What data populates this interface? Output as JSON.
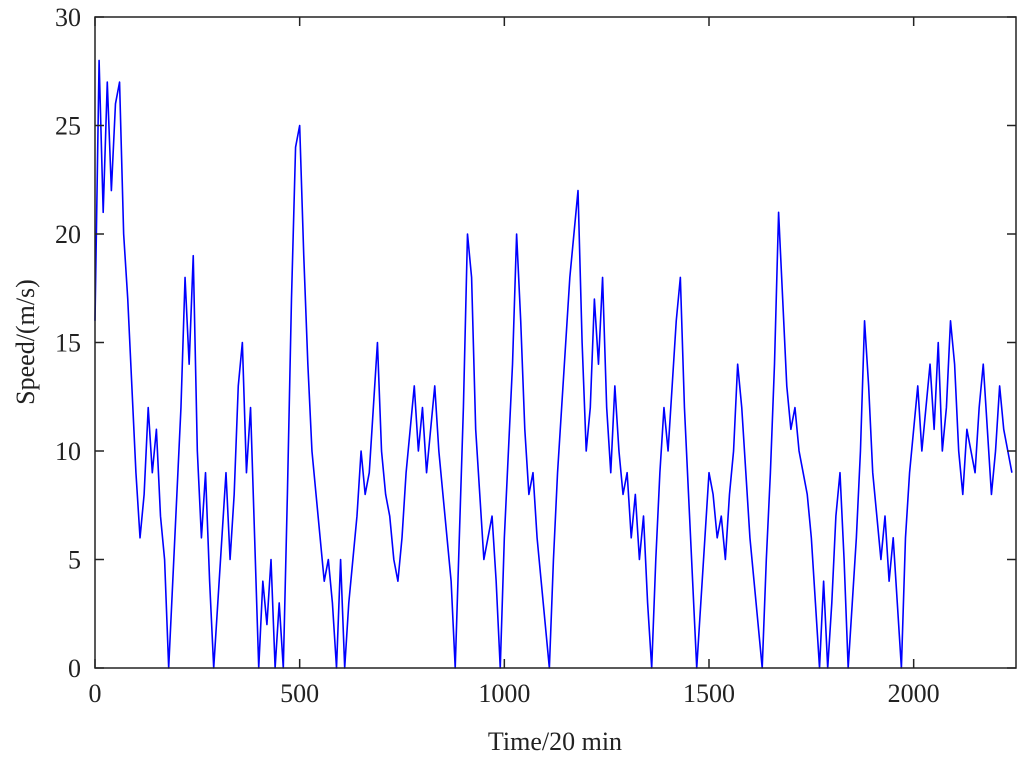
{
  "chart_data": {
    "type": "line",
    "x_label": "Time/20 min",
    "y_label": "Speed/(m/s)",
    "x": [
      0,
      10,
      20,
      30,
      40,
      50,
      60,
      70,
      80,
      90,
      100,
      110,
      120,
      130,
      140,
      150,
      160,
      170,
      180,
      190,
      200,
      210,
      220,
      230,
      240,
      250,
      260,
      270,
      280,
      290,
      300,
      310,
      320,
      330,
      340,
      350,
      360,
      370,
      380,
      390,
      400,
      410,
      420,
      430,
      440,
      450,
      460,
      470,
      480,
      490,
      500,
      510,
      520,
      530,
      540,
      550,
      560,
      570,
      580,
      590,
      600,
      610,
      620,
      630,
      640,
      650,
      660,
      670,
      680,
      690,
      700,
      710,
      720,
      730,
      740,
      750,
      760,
      770,
      780,
      790,
      800,
      810,
      820,
      830,
      840,
      850,
      860,
      870,
      880,
      890,
      900,
      910,
      920,
      930,
      940,
      950,
      960,
      970,
      980,
      990,
      1000,
      1010,
      1020,
      1030,
      1040,
      1050,
      1060,
      1070,
      1080,
      1090,
      1100,
      1110,
      1120,
      1130,
      1140,
      1150,
      1160,
      1170,
      1180,
      1190,
      1200,
      1210,
      1220,
      1230,
      1240,
      1250,
      1260,
      1270,
      1280,
      1290,
      1300,
      1310,
      1320,
      1330,
      1340,
      1350,
      1360,
      1370,
      1380,
      1390,
      1400,
      1410,
      1420,
      1430,
      1440,
      1450,
      1460,
      1470,
      1480,
      1490,
      1500,
      1510,
      1520,
      1530,
      1540,
      1550,
      1560,
      1570,
      1580,
      1590,
      1600,
      1610,
      1620,
      1630,
      1640,
      1650,
      1660,
      1670,
      1680,
      1690,
      1700,
      1710,
      1720,
      1730,
      1740,
      1750,
      1760,
      1770,
      1780,
      1790,
      1800,
      1810,
      1820,
      1830,
      1840,
      1850,
      1860,
      1870,
      1880,
      1890,
      1900,
      1910,
      1920,
      1930,
      1940,
      1950,
      1960,
      1970,
      1980,
      1990,
      2000,
      2010,
      2020,
      2030,
      2040,
      2050,
      2060,
      2070,
      2080,
      2090,
      2100,
      2110,
      2120,
      2130,
      2140,
      2150,
      2160,
      2170,
      2180,
      2190,
      2200,
      2210,
      2220,
      2230,
      2240
    ],
    "series": [
      {
        "color": "#0000ff",
        "values": [
          16,
          28,
          21,
          27,
          22,
          26,
          27,
          20,
          17,
          13,
          9,
          6,
          8,
          12,
          9,
          11,
          7,
          5,
          0,
          4,
          8,
          12,
          18,
          14,
          19,
          10,
          6,
          9,
          4,
          0,
          3,
          6,
          9,
          5,
          8,
          13,
          15,
          9,
          12,
          6,
          0,
          4,
          2,
          5,
          0,
          3,
          0,
          8,
          17,
          24,
          25,
          19,
          14,
          10,
          8,
          6,
          4,
          5,
          3,
          0,
          5,
          0,
          3,
          5,
          7,
          10,
          8,
          9,
          12,
          15,
          10,
          8,
          7,
          5,
          4,
          6,
          9,
          11,
          13,
          10,
          12,
          9,
          11,
          13,
          10,
          8,
          6,
          4,
          0,
          6,
          12,
          20,
          18,
          11,
          8,
          5,
          6,
          7,
          4,
          0,
          6,
          10,
          14,
          20,
          16,
          11,
          8,
          9,
          6,
          4,
          2,
          0,
          5,
          9,
          12,
          15,
          18,
          20,
          22,
          15,
          10,
          12,
          17,
          14,
          18,
          12,
          9,
          13,
          10,
          8,
          9,
          6,
          8,
          5,
          7,
          3,
          0,
          5,
          9,
          12,
          10,
          13,
          16,
          18,
          12,
          8,
          4,
          0,
          3,
          6,
          9,
          8,
          6,
          7,
          5,
          8,
          10,
          14,
          12,
          9,
          6,
          4,
          2,
          0,
          5,
          9,
          14,
          21,
          17,
          13,
          11,
          12,
          10,
          9,
          8,
          6,
          3,
          0,
          4,
          0,
          3,
          7,
          9,
          5,
          0,
          3,
          6,
          10,
          16,
          13,
          9,
          7,
          5,
          7,
          4,
          6,
          3,
          0,
          6,
          9,
          11,
          13,
          10,
          12,
          14,
          11,
          15,
          10,
          12,
          16,
          14,
          10,
          8,
          11,
          10,
          9,
          12,
          14,
          11,
          8,
          10,
          13,
          11,
          10,
          9
        ]
      }
    ],
    "xlim": [
      0,
      2250
    ],
    "ylim": [
      0,
      30
    ],
    "xticks": [
      0,
      500,
      1000,
      1500,
      2000
    ],
    "yticks": [
      0,
      5,
      10,
      15,
      20,
      25,
      30
    ]
  }
}
